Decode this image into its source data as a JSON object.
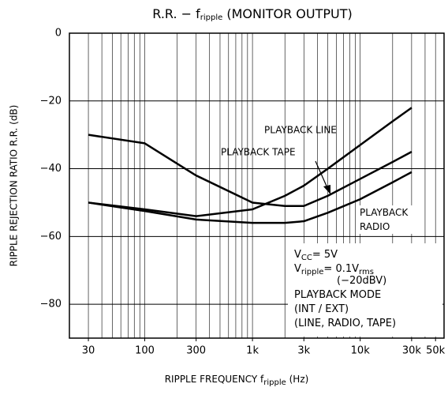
{
  "chart_data": {
    "type": "line",
    "title": [
      "R.R.  −  f",
      "ripple",
      "  (MONITOR OUTPUT)"
    ],
    "y_label": "RIPPLE REJECTION RATIO   R.R.  (dB)",
    "x_label": [
      "RIPPLE FREQUENCY   f",
      "ripple",
      "   (Hz)"
    ],
    "x": [
      30,
      100,
      300,
      1000,
      2000,
      3000,
      5000,
      10000,
      20000,
      30000
    ],
    "series": [
      {
        "name": "PLAYBACK LINE",
        "color": "#000000",
        "values": [
          -50,
          -52,
          -54,
          -52,
          -48,
          -45,
          -40,
          -33,
          -26,
          -22
        ]
      },
      {
        "name": "PLAYBACK TAPE",
        "color": "#000000",
        "values": [
          -30,
          -32.5,
          -42,
          -50,
          -51,
          -51,
          -48,
          -43,
          -38,
          -35
        ]
      },
      {
        "name": "PLAYBACK RADIO",
        "color": "#000000",
        "values": [
          -50,
          -52.5,
          -55,
          -56,
          -56,
          -55.5,
          -53,
          -49,
          -44,
          -41
        ]
      }
    ],
    "xlim": [
      20,
      60000
    ],
    "xticks": [
      30,
      100,
      300,
      {
        "value": 1000,
        "label": "1k"
      },
      {
        "value": 3000,
        "label": "3k"
      },
      {
        "value": 10000,
        "label": "10k"
      },
      {
        "value": 30000,
        "label": "30k"
      },
      {
        "value": 50000,
        "label": "50k"
      }
    ],
    "ylim": [
      -90,
      0
    ],
    "yticks": [
      0,
      {
        "value": -20,
        "label": "−20"
      },
      {
        "value": -40,
        "label": "−40"
      },
      {
        "value": -60,
        "label": "−60"
      },
      {
        "value": -80,
        "label": "−80"
      }
    ],
    "log_x": true,
    "grid": true,
    "minor_grid": true,
    "conditions": [
      [
        "V",
        "CC",
        "= 5V"
      ],
      [
        "V",
        "ripple",
        "= 0.1V",
        "rms"
      ],
      [
        "(−20dBV)"
      ],
      [
        "PLAYBACK MODE"
      ],
      [
        "(INT / EXT)"
      ],
      [
        "(LINE, RADIO, TAPE)"
      ]
    ]
  }
}
